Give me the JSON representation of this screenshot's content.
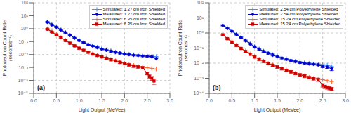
{
  "chart_data": [
    {
      "type": "line",
      "title": "(a)",
      "xlabel": "Light Output (MeVee)",
      "ylabel": "Photoneutron Count Rate\n(seconds⁻¹)",
      "xlim": [
        0,
        3
      ],
      "ylim": [
        1e-05,
        100
      ],
      "xticks": [
        {
          "value": 0,
          "label": "0.0"
        },
        0.5,
        {
          "value": 1,
          "label": "1.0"
        },
        1.5,
        {
          "value": 2,
          "label": "2.0"
        },
        2.5,
        {
          "value": 3,
          "label": "3.0"
        }
      ],
      "yticks": [
        {
          "value": 1e-05,
          "label": "10⁻⁵"
        },
        {
          "value": 0.0001,
          "label": "10⁻⁴"
        },
        {
          "value": 0.001,
          "label": "10⁻³"
        },
        {
          "value": 0.01,
          "label": "10⁻²"
        },
        {
          "value": 0.1,
          "label": "10⁻¹"
        },
        {
          "value": 1,
          "label": "10⁰"
        },
        {
          "value": 10,
          "label": "10¹"
        },
        {
          "value": 100,
          "label": "10²"
        }
      ],
      "log": "y",
      "grid": true,
      "legend": "upper right",
      "series": [
        {
          "name": "Simulated: 1.27 cm Iron Shielded",
          "type": "line",
          "color": "#4488ff",
          "marker": "plus",
          "line_style": "solid",
          "x": [
            0.3,
            0.4,
            0.5,
            0.6,
            0.7,
            0.8,
            0.9,
            1.0,
            1.1,
            1.2,
            1.3,
            1.4,
            1.5,
            1.6,
            1.7,
            1.8,
            1.9,
            2.0,
            2.1,
            2.2,
            2.3,
            2.4,
            2.5,
            2.6,
            2.7
          ],
          "values": [
            3.5,
            2.2,
            1.4,
            0.85,
            0.52,
            0.32,
            0.2,
            0.13,
            0.09,
            0.065,
            0.05,
            0.038,
            0.03,
            0.024,
            0.02,
            0.016,
            0.014,
            0.012,
            0.011,
            0.01,
            0.009,
            0.0085,
            0.008,
            0.0075,
            0.007
          ]
        },
        {
          "name": "Measured: 1.27 cm Iron Shielded",
          "type": "line",
          "color": "#0000cc",
          "marker": "diamond",
          "line_style": "solid",
          "x": [
            0.3,
            0.4,
            0.5,
            0.6,
            0.7,
            0.8,
            0.9,
            1.0,
            1.1,
            1.2,
            1.3,
            1.4,
            1.5,
            1.6,
            1.7,
            1.8,
            1.9,
            2.0,
            2.1,
            2.2,
            2.3,
            2.4,
            2.5,
            2.6,
            2.7
          ],
          "values": [
            3.2,
            2.0,
            1.3,
            0.8,
            0.5,
            0.31,
            0.19,
            0.12,
            0.085,
            0.06,
            0.046,
            0.035,
            0.027,
            0.022,
            0.018,
            0.015,
            0.013,
            0.011,
            0.01,
            0.009,
            0.0085,
            0.0078,
            0.0074,
            0.0068,
            0.0048
          ],
          "errors": [
            0.28,
            0.17,
            0.11,
            0.07,
            0.05,
            0.032,
            0.021,
            0.014,
            0.01,
            0.007,
            0.006,
            0.005,
            0.004,
            0.003,
            0.0025,
            0.002,
            0.0018,
            0.0015,
            0.0013,
            0.0011,
            0.001,
            0.001,
            0.001,
            0.001,
            0.001
          ]
        },
        {
          "name": "Simulated: 6.35 cm Iron Shielded",
          "type": "line",
          "color": "#ff6633",
          "marker": "plus",
          "line_style": "solid",
          "x": [
            0.3,
            0.4,
            0.5,
            0.6,
            0.7,
            0.8,
            0.9,
            1.0,
            1.1,
            1.2,
            1.3,
            1.4,
            1.5,
            1.6,
            1.7,
            1.8,
            1.9,
            2.0,
            2.1,
            2.2,
            2.3,
            2.4,
            2.5,
            2.6,
            2.7
          ],
          "values": [
            1.0,
            0.6,
            0.36,
            0.21,
            0.13,
            0.08,
            0.05,
            0.033,
            0.022,
            0.016,
            0.012,
            0.009,
            0.007,
            0.0055,
            0.0043,
            0.0034,
            0.0027,
            0.0022,
            0.0018,
            0.0015,
            0.0013,
            0.0011,
            0.00095,
            0.00085,
            0.00075
          ]
        },
        {
          "name": "Measured: 6.35 cm Iron Shielded",
          "type": "line",
          "color": "#cc0000",
          "marker": "square",
          "line_style": "solid",
          "x": [
            0.3,
            0.4,
            0.5,
            0.6,
            0.7,
            0.8,
            0.9,
            1.0,
            1.1,
            1.2,
            1.3,
            1.4,
            1.5,
            1.6,
            1.7,
            1.8,
            1.9,
            2.0,
            2.1,
            2.2,
            2.3,
            2.4,
            2.5,
            2.55,
            2.6,
            2.65
          ],
          "values": [
            0.9,
            0.55,
            0.33,
            0.2,
            0.12,
            0.075,
            0.047,
            0.031,
            0.021,
            0.015,
            0.011,
            0.0085,
            0.0066,
            0.0052,
            0.004,
            0.0032,
            0.0025,
            0.002,
            0.0016,
            0.0013,
            0.0011,
            0.00095,
            0.00035,
            0.0002,
            0.00015,
            9e-05
          ],
          "errors": [
            0.1,
            0.06,
            0.04,
            0.025,
            0.015,
            0.01,
            0.007,
            0.005,
            0.003,
            0.002,
            0.002,
            0.001,
            0.001,
            0.001,
            0.0008,
            0.0006,
            0.0005,
            0.0004,
            0.0003,
            0.0003,
            0.0002,
            0.0002,
            8e-05,
            6e-05,
            5e-05,
            4e-05
          ]
        }
      ]
    },
    {
      "type": "line",
      "title": "(b)",
      "xlabel": "Light Output (MeVee)",
      "ylabel": "Photoneutron Count Rate\n(seconds⁻¹)",
      "xlim": [
        0,
        3
      ],
      "ylim": [
        0.0001,
        100
      ],
      "xticks": [
        {
          "value": 0,
          "label": "0.0"
        },
        0.5,
        {
          "value": 1,
          "label": "1.0"
        },
        1.5,
        {
          "value": 2,
          "label": "2.0"
        },
        2.5,
        {
          "value": 3,
          "label": "3.0"
        }
      ],
      "yticks": [
        {
          "value": 0.0001,
          "label": "10⁻⁴"
        },
        {
          "value": 0.001,
          "label": "10⁻³"
        },
        {
          "value": 0.01,
          "label": "10⁻²"
        },
        {
          "value": 0.1,
          "label": "10⁻¹"
        },
        {
          "value": 1,
          "label": "10⁰"
        },
        {
          "value": 10,
          "label": "10¹"
        },
        {
          "value": 100,
          "label": "10²"
        }
      ],
      "log": "y",
      "grid": true,
      "legend": "upper right",
      "series": [
        {
          "name": "Simulated: 2.54 cm Polyethylene Shielded",
          "type": "line",
          "color": "#4488ff",
          "marker": "plus",
          "line_style": "solid",
          "x": [
            0.3,
            0.4,
            0.5,
            0.6,
            0.7,
            0.8,
            0.9,
            1.0,
            1.1,
            1.2,
            1.3,
            1.4,
            1.5,
            1.6,
            1.7,
            1.8,
            1.9,
            2.0,
            2.1,
            2.2,
            2.3,
            2.4,
            2.5,
            2.6,
            2.7
          ],
          "values": [
            3.5,
            2.2,
            1.4,
            0.85,
            0.52,
            0.32,
            0.2,
            0.13,
            0.09,
            0.065,
            0.05,
            0.038,
            0.03,
            0.024,
            0.02,
            0.016,
            0.014,
            0.012,
            0.011,
            0.01,
            0.009,
            0.0085,
            0.008,
            0.0075,
            0.006
          ]
        },
        {
          "name": "Measured: 2.54 cm Polyethylene Shielded",
          "type": "line",
          "color": "#0000cc",
          "marker": "diamond",
          "line_style": "solid",
          "x": [
            0.3,
            0.4,
            0.5,
            0.6,
            0.7,
            0.8,
            0.9,
            1.0,
            1.1,
            1.2,
            1.3,
            1.4,
            1.5,
            1.6,
            1.7,
            1.8,
            1.9,
            2.0,
            2.1,
            2.2,
            2.3,
            2.4,
            2.5,
            2.6,
            2.7
          ],
          "values": [
            3.2,
            2.0,
            1.3,
            0.8,
            0.5,
            0.31,
            0.19,
            0.12,
            0.085,
            0.06,
            0.046,
            0.035,
            0.027,
            0.022,
            0.018,
            0.015,
            0.013,
            0.011,
            0.01,
            0.009,
            0.0085,
            0.0078,
            0.006,
            0.0055,
            0.0042
          ],
          "errors": [
            0.28,
            0.17,
            0.11,
            0.07,
            0.05,
            0.032,
            0.021,
            0.014,
            0.01,
            0.007,
            0.006,
            0.005,
            0.004,
            0.003,
            0.0025,
            0.002,
            0.0018,
            0.0015,
            0.0013,
            0.0011,
            0.001,
            0.001,
            0.001,
            0.001,
            0.001
          ]
        },
        {
          "name": "Simulated: 15.24 cm Polyethylene Shielded",
          "type": "line",
          "color": "#ff6633",
          "marker": "plus",
          "line_style": "solid",
          "x": [
            0.3,
            0.4,
            0.5,
            0.6,
            0.7,
            0.8,
            0.9,
            1.0,
            1.1,
            1.2,
            1.3,
            1.4,
            1.5,
            1.6,
            1.7,
            1.8,
            1.9,
            2.0,
            2.1,
            2.2,
            2.3,
            2.4,
            2.5,
            2.6,
            2.7
          ],
          "values": [
            0.8,
            0.45,
            0.27,
            0.16,
            0.1,
            0.065,
            0.042,
            0.028,
            0.019,
            0.014,
            0.01,
            0.0078,
            0.006,
            0.0046,
            0.0036,
            0.0028,
            0.0022,
            0.0018,
            0.0015,
            0.0012,
            0.001,
            0.0009,
            0.0008,
            0.0007,
            0.0006
          ]
        },
        {
          "name": "Measured: 15.24 cm Polyethylene Shielded",
          "type": "line",
          "color": "#cc0000",
          "marker": "square",
          "line_style": "solid",
          "x": [
            0.3,
            0.4,
            0.5,
            0.6,
            0.7,
            0.8,
            0.9,
            1.0,
            1.1,
            1.2,
            1.3,
            1.4,
            1.5,
            1.6,
            1.7,
            1.8,
            1.9,
            2.0,
            2.1,
            2.2,
            2.3,
            2.4,
            2.5,
            2.55,
            2.6,
            2.65,
            2.7
          ],
          "values": [
            0.75,
            0.42,
            0.25,
            0.15,
            0.095,
            0.06,
            0.039,
            0.026,
            0.018,
            0.013,
            0.0095,
            0.0073,
            0.0056,
            0.0043,
            0.0034,
            0.0027,
            0.0021,
            0.0017,
            0.0014,
            0.0011,
            0.00095,
            0.00082,
            0.00035,
            0.00028,
            0.00025,
            0.00022,
            0.0002
          ],
          "errors": [
            0.08,
            0.05,
            0.03,
            0.018,
            0.012,
            0.008,
            0.005,
            0.004,
            0.003,
            0.002,
            0.001,
            0.001,
            0.001,
            0.0008,
            0.0006,
            0.0005,
            0.0004,
            0.0003,
            0.0003,
            0.0002,
            0.0002,
            0.0002,
            9e-05,
            7e-05,
            6e-05,
            5e-05,
            4e-05
          ]
        }
      ]
    }
  ]
}
